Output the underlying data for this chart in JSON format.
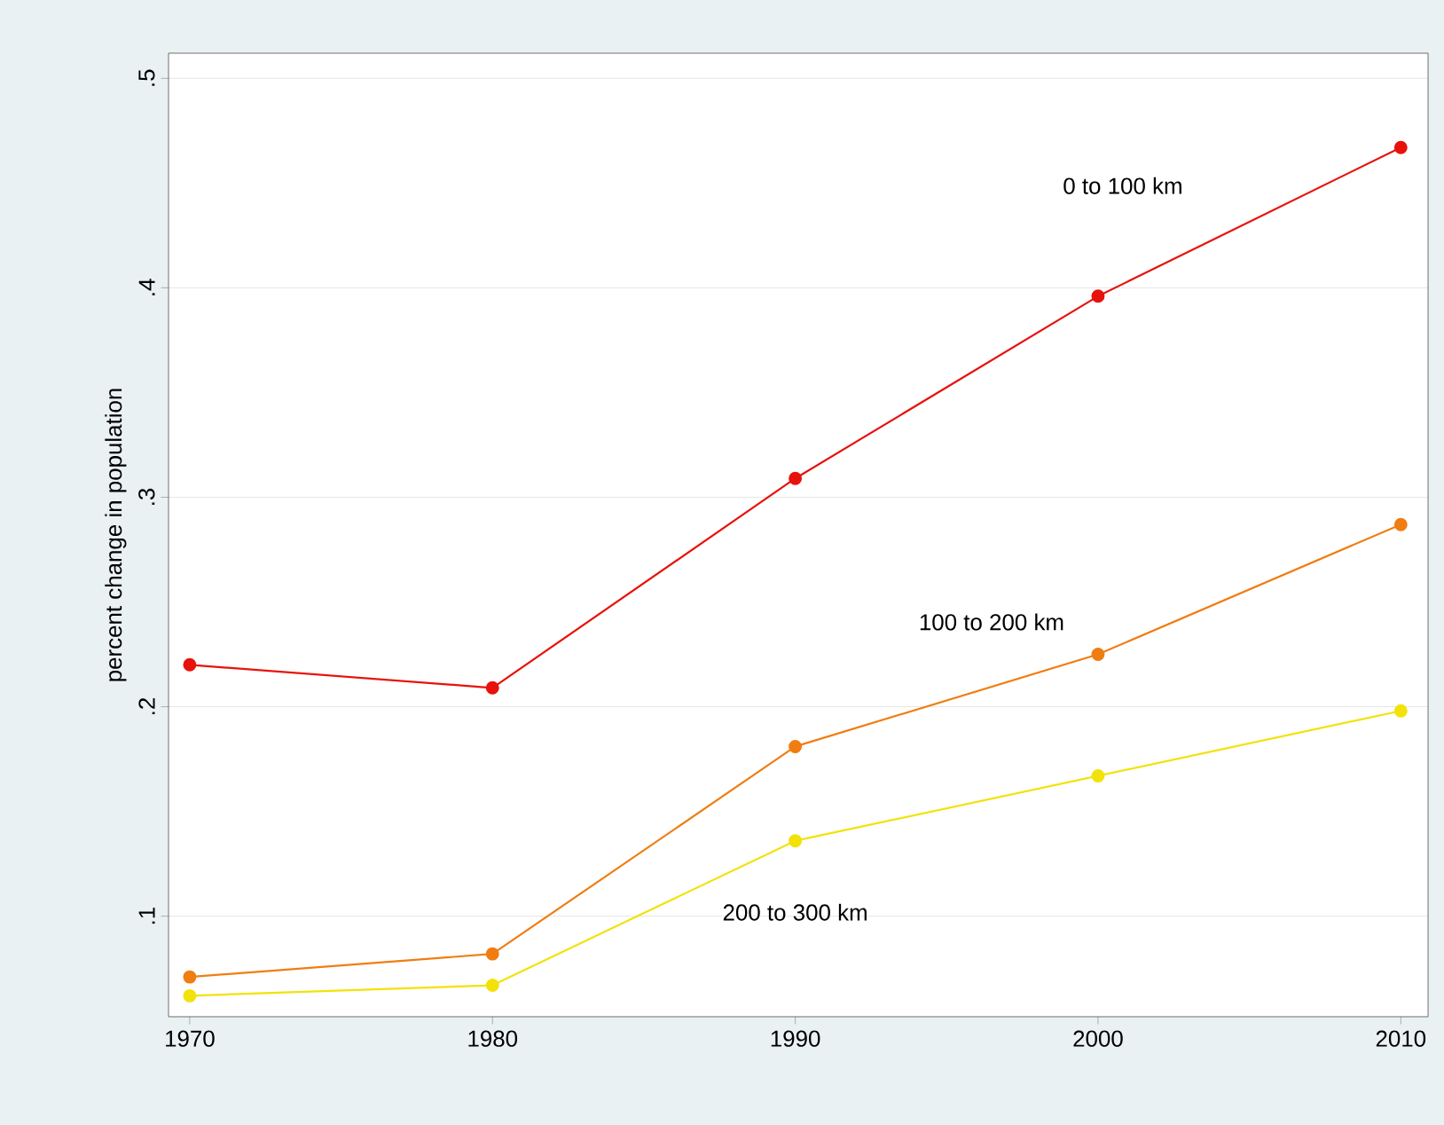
{
  "chart_data": {
    "type": "line",
    "ylabel": "percent change in population",
    "x": [
      1970,
      1980,
      1990,
      2000,
      2010
    ],
    "series": [
      {
        "name": "0 to 100 km",
        "color": "#e8120c",
        "values": [
          0.22,
          0.209,
          0.309,
          0.396,
          0.467
        ]
      },
      {
        "name": "100 to 200 km",
        "color": "#f07d12",
        "values": [
          0.071,
          0.082,
          0.181,
          0.225,
          0.287
        ]
      },
      {
        "name": "200 to 300 km",
        "color": "#f2e20a",
        "values": [
          0.062,
          0.067,
          0.136,
          0.167,
          0.198
        ]
      }
    ],
    "xlim": [
      1969.3,
      2010.9
    ],
    "ylim": [
      0.052,
      0.512
    ],
    "xticks": [
      1970,
      1980,
      1990,
      2000,
      2010
    ],
    "yticks": [
      {
        "value": 0.1,
        "label": ".1"
      },
      {
        "value": 0.2,
        "label": ".2"
      },
      {
        "value": 0.3,
        "label": ".3"
      },
      {
        "value": 0.4,
        "label": ".4"
      },
      {
        "value": 0.5,
        "label": ".5"
      }
    ],
    "grid": "y",
    "marker": "circle",
    "line_style": "solid",
    "legend": false
  }
}
